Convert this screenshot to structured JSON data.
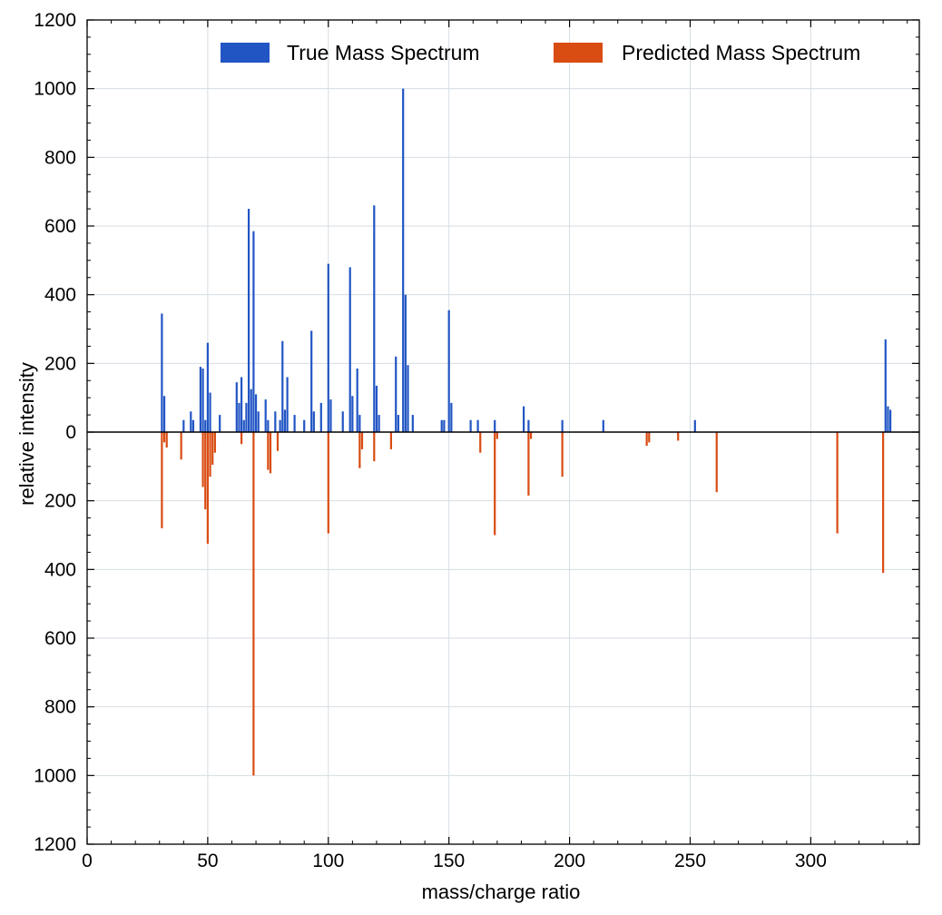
{
  "chart_data": {
    "type": "bar",
    "xlabel": "mass/charge ratio",
    "ylabel": "relative intensity",
    "xlim": [
      0,
      345
    ],
    "ylim": [
      -1200,
      1200
    ],
    "x_ticks": [
      0,
      50,
      100,
      150,
      200,
      250,
      300
    ],
    "y_ticks": [
      -1200,
      -1000,
      -800,
      -600,
      -400,
      -200,
      0,
      200,
      400,
      600,
      800,
      1000,
      1200
    ],
    "y_tick_labels": [
      "1200",
      "1000",
      "800",
      "600",
      "400",
      "200",
      "0",
      "200",
      "400",
      "600",
      "800",
      "1000",
      "1200"
    ],
    "grid": true,
    "legend_position": "top-right",
    "series": [
      {
        "name": "True Mass Spectrum",
        "color": "#2155c4",
        "direction": "up",
        "x": [
          31,
          32,
          40,
          43,
          44,
          47,
          48,
          49,
          50,
          51,
          55,
          62,
          63,
          64,
          65,
          66,
          67,
          68,
          69,
          70,
          71,
          74,
          75,
          78,
          80,
          81,
          82,
          83,
          86,
          90,
          93,
          94,
          97,
          100,
          101,
          106,
          109,
          110,
          112,
          113,
          119,
          120,
          121,
          128,
          129,
          131,
          132,
          133,
          135,
          147,
          148,
          150,
          151,
          159,
          162,
          169,
          181,
          183,
          197,
          214,
          252,
          331,
          332,
          333
        ],
        "values": [
          345,
          105,
          35,
          60,
          35,
          190,
          185,
          35,
          260,
          115,
          50,
          145,
          85,
          160,
          35,
          85,
          650,
          125,
          585,
          110,
          60,
          95,
          35,
          60,
          35,
          265,
          65,
          160,
          50,
          35,
          295,
          60,
          85,
          490,
          95,
          60,
          480,
          105,
          185,
          50,
          660,
          135,
          50,
          220,
          50,
          1000,
          400,
          195,
          50,
          35,
          35,
          355,
          85,
          35,
          35,
          35,
          75,
          35,
          35,
          35,
          35,
          270,
          75,
          65
        ]
      },
      {
        "name": "Predicted Mass Spectrum",
        "color": "#d94c12",
        "direction": "down",
        "x": [
          31,
          32,
          33,
          39,
          48,
          49,
          50,
          51,
          52,
          53,
          64,
          75,
          76,
          79,
          69,
          100,
          113,
          114,
          119,
          126,
          163,
          169,
          170,
          183,
          184,
          197,
          232,
          233,
          245,
          261,
          311,
          330
        ],
        "values": [
          280,
          30,
          45,
          80,
          160,
          225,
          325,
          130,
          95,
          60,
          35,
          110,
          120,
          55,
          1000,
          295,
          105,
          50,
          85,
          50,
          60,
          300,
          20,
          185,
          20,
          130,
          40,
          30,
          25,
          175,
          295,
          410
        ]
      }
    ]
  }
}
